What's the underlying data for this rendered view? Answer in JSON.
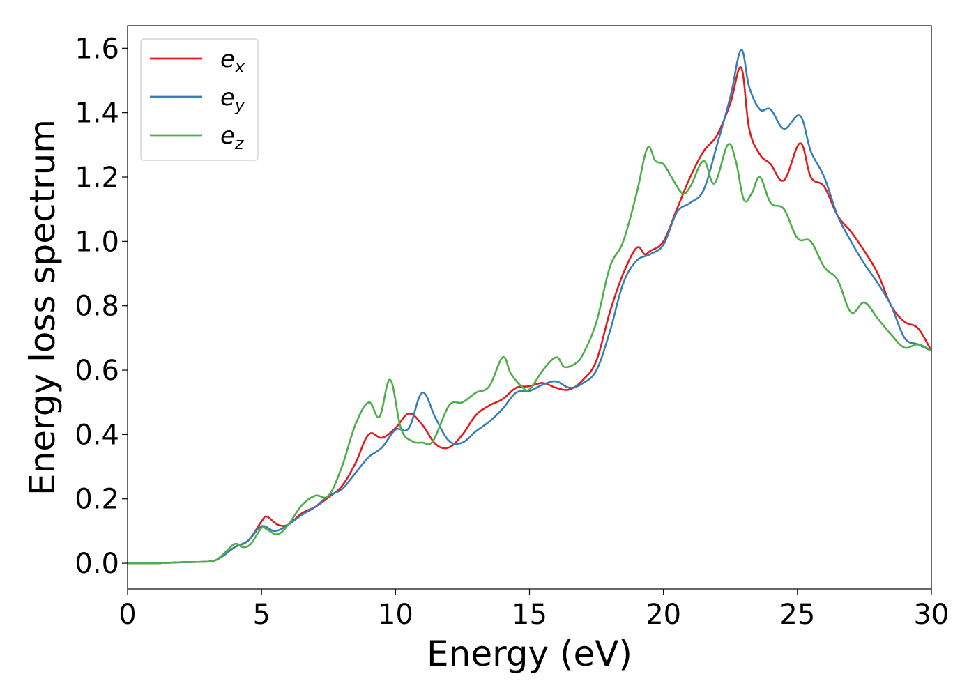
{
  "chart_data": {
    "type": "line",
    "title": "",
    "xlabel": "Energy (eV)",
    "ylabel": "Energy loss spectrum",
    "xlim": [
      0,
      30
    ],
    "ylim": [
      -0.08,
      1.67
    ],
    "xticks": [
      0,
      5,
      10,
      15,
      20,
      25,
      30
    ],
    "xtick_labels": [
      "0",
      "5",
      "10",
      "15",
      "20",
      "25",
      "30"
    ],
    "yticks": [
      0.0,
      0.2,
      0.4,
      0.6,
      0.8,
      1.0,
      1.2,
      1.4,
      1.6
    ],
    "ytick_labels": [
      "0.0",
      "0.2",
      "0.4",
      "0.6",
      "0.8",
      "1.0",
      "1.2",
      "1.4",
      "1.6"
    ],
    "grid": false,
    "legend_position": "top-left",
    "series": [
      {
        "name": "e",
        "subscript": "x",
        "color": "#e41a1c",
        "x": [
          0,
          1,
          2,
          3,
          3.3,
          3.6,
          4.0,
          4.5,
          5.0,
          5.2,
          5.6,
          6.0,
          6.5,
          7.0,
          7.5,
          8.0,
          8.5,
          9.0,
          9.5,
          10.0,
          10.5,
          11.0,
          11.5,
          12.0,
          12.5,
          13.0,
          13.5,
          14.0,
          14.5,
          15.0,
          15.5,
          16.0,
          16.5,
          17.0,
          17.5,
          18.0,
          18.5,
          19.0,
          19.3,
          19.5,
          20.0,
          20.5,
          21.0,
          21.5,
          22.0,
          22.5,
          22.9,
          23.2,
          23.6,
          24.0,
          24.5,
          25.1,
          25.5,
          26.0,
          26.5,
          27.0,
          27.5,
          28.0,
          28.5,
          29.0,
          29.5,
          30.0
        ],
        "y": [
          0.0,
          0.0,
          0.003,
          0.005,
          0.01,
          0.025,
          0.05,
          0.07,
          0.13,
          0.145,
          0.12,
          0.12,
          0.155,
          0.175,
          0.205,
          0.24,
          0.31,
          0.4,
          0.39,
          0.42,
          0.465,
          0.43,
          0.37,
          0.36,
          0.4,
          0.46,
          0.49,
          0.51,
          0.545,
          0.55,
          0.56,
          0.545,
          0.54,
          0.57,
          0.63,
          0.78,
          0.9,
          0.98,
          0.96,
          0.97,
          1.0,
          1.1,
          1.2,
          1.28,
          1.33,
          1.43,
          1.54,
          1.35,
          1.27,
          1.24,
          1.19,
          1.305,
          1.2,
          1.17,
          1.08,
          1.03,
          0.97,
          0.9,
          0.8,
          0.75,
          0.73,
          0.66
        ]
      },
      {
        "name": "e",
        "subscript": "y",
        "color": "#377eb8",
        "x": [
          0,
          1,
          2,
          3,
          3.3,
          3.6,
          4.0,
          4.5,
          5.0,
          5.5,
          6.0,
          6.5,
          7.0,
          7.5,
          8.0,
          8.5,
          9.0,
          9.5,
          10.0,
          10.5,
          11.0,
          11.5,
          12.0,
          12.5,
          13.0,
          13.5,
          14.0,
          14.5,
          15.0,
          15.5,
          16.0,
          16.5,
          17.0,
          17.5,
          18.0,
          18.5,
          19.0,
          19.5,
          20.0,
          20.5,
          21.0,
          21.5,
          22.0,
          22.5,
          22.9,
          23.2,
          23.6,
          24.0,
          24.5,
          25.1,
          25.5,
          26.0,
          26.5,
          27.0,
          27.5,
          28.0,
          28.5,
          29.0,
          29.5,
          30.0
        ],
        "y": [
          0.0,
          0.0,
          0.003,
          0.005,
          0.01,
          0.025,
          0.05,
          0.07,
          0.115,
          0.1,
          0.12,
          0.15,
          0.175,
          0.21,
          0.23,
          0.28,
          0.33,
          0.36,
          0.415,
          0.42,
          0.53,
          0.45,
          0.38,
          0.375,
          0.41,
          0.44,
          0.48,
          0.53,
          0.535,
          0.555,
          0.565,
          0.545,
          0.56,
          0.6,
          0.72,
          0.87,
          0.94,
          0.96,
          0.99,
          1.09,
          1.12,
          1.16,
          1.3,
          1.45,
          1.595,
          1.48,
          1.41,
          1.41,
          1.35,
          1.39,
          1.28,
          1.2,
          1.08,
          1.0,
          0.93,
          0.87,
          0.8,
          0.7,
          0.68,
          0.66
        ]
      },
      {
        "name": "e",
        "subscript": "z",
        "color": "#4daf4a",
        "x": [
          0,
          1,
          2,
          3,
          3.3,
          3.6,
          4.0,
          4.3,
          4.6,
          5.0,
          5.2,
          5.6,
          6.0,
          6.5,
          7.0,
          7.5,
          8.0,
          8.5,
          9.0,
          9.4,
          9.8,
          10.2,
          10.6,
          11.0,
          11.4,
          12.0,
          12.5,
          13.0,
          13.5,
          14.0,
          14.3,
          14.7,
          15.0,
          15.5,
          16.0,
          16.3,
          16.7,
          17.0,
          17.5,
          18.0,
          18.5,
          19.0,
          19.4,
          19.7,
          20.0,
          20.3,
          20.7,
          21.0,
          21.5,
          21.9,
          22.4,
          22.7,
          23.0,
          23.3,
          23.6,
          24.0,
          24.5,
          25.0,
          25.5,
          26.0,
          26.5,
          27.0,
          27.5,
          28.0,
          28.5,
          29.0,
          29.5,
          30.0
        ],
        "y": [
          0.0,
          0.0,
          0.003,
          0.005,
          0.01,
          0.03,
          0.06,
          0.05,
          0.06,
          0.11,
          0.105,
          0.09,
          0.12,
          0.18,
          0.21,
          0.21,
          0.3,
          0.43,
          0.5,
          0.455,
          0.57,
          0.42,
          0.38,
          0.375,
          0.38,
          0.49,
          0.5,
          0.53,
          0.55,
          0.64,
          0.59,
          0.55,
          0.54,
          0.6,
          0.64,
          0.61,
          0.62,
          0.65,
          0.75,
          0.92,
          1.0,
          1.15,
          1.29,
          1.25,
          1.24,
          1.2,
          1.15,
          1.17,
          1.25,
          1.18,
          1.3,
          1.25,
          1.13,
          1.15,
          1.2,
          1.12,
          1.1,
          1.01,
          1.0,
          0.92,
          0.88,
          0.78,
          0.81,
          0.76,
          0.71,
          0.67,
          0.68,
          0.66
        ]
      }
    ]
  }
}
